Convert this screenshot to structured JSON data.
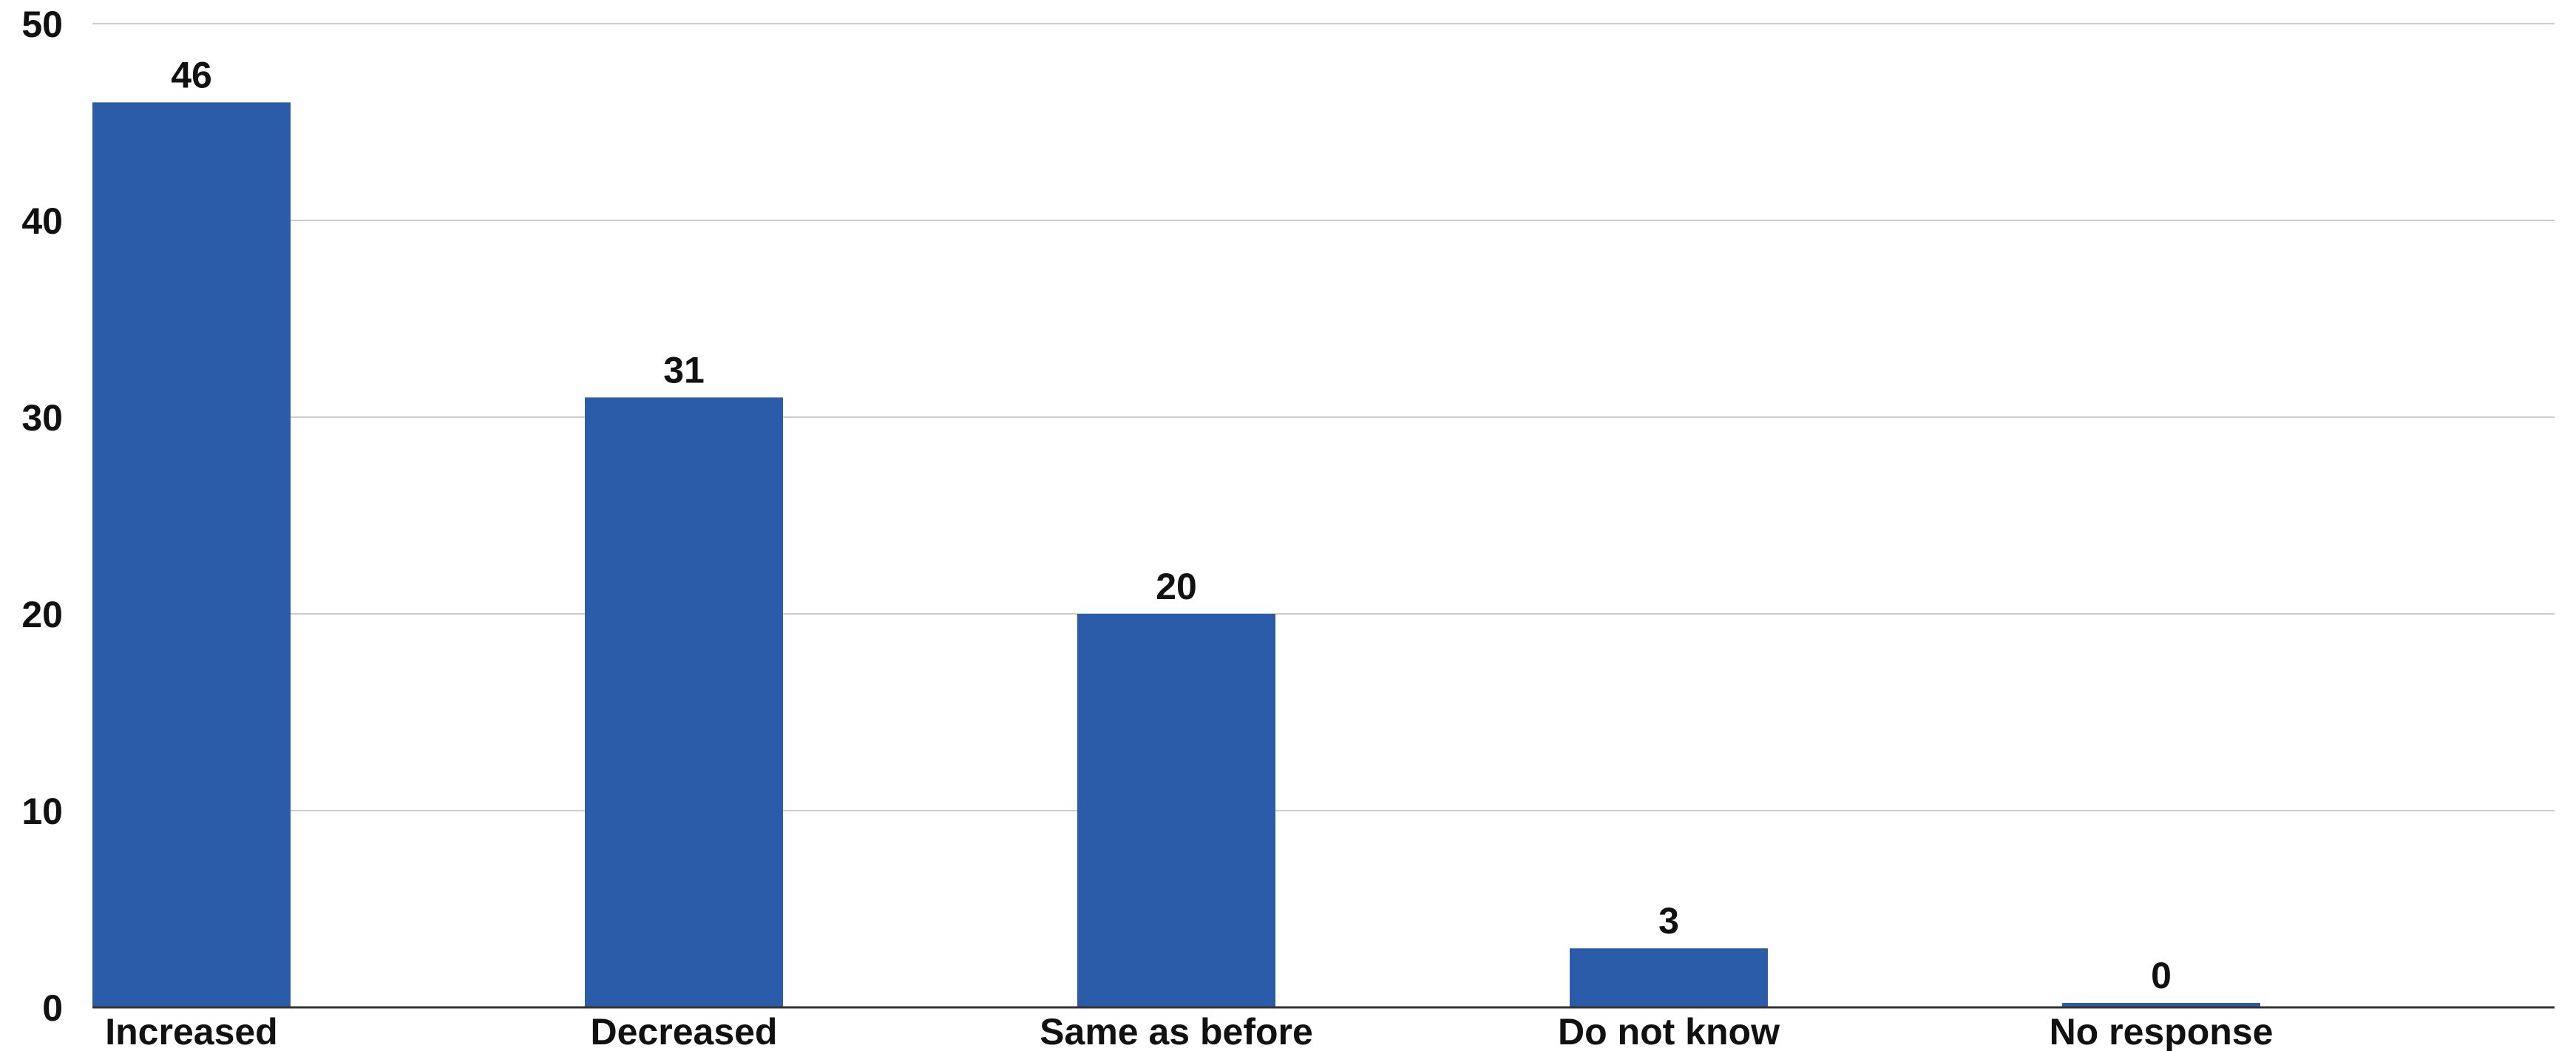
{
  "chart_data": {
    "type": "bar",
    "categories": [
      "Increased",
      "Decreased",
      "Same as before",
      "Do not know",
      "No response"
    ],
    "values": [
      46,
      31,
      20,
      3,
      0
    ],
    "data_labels": [
      "46",
      "31",
      "20",
      "3",
      "0"
    ],
    "y_ticks": [
      0,
      10,
      20,
      30,
      40,
      50
    ],
    "ylim": [
      0,
      50
    ],
    "grid": true,
    "legend": "none",
    "bar_color": "#2b5caa"
  }
}
